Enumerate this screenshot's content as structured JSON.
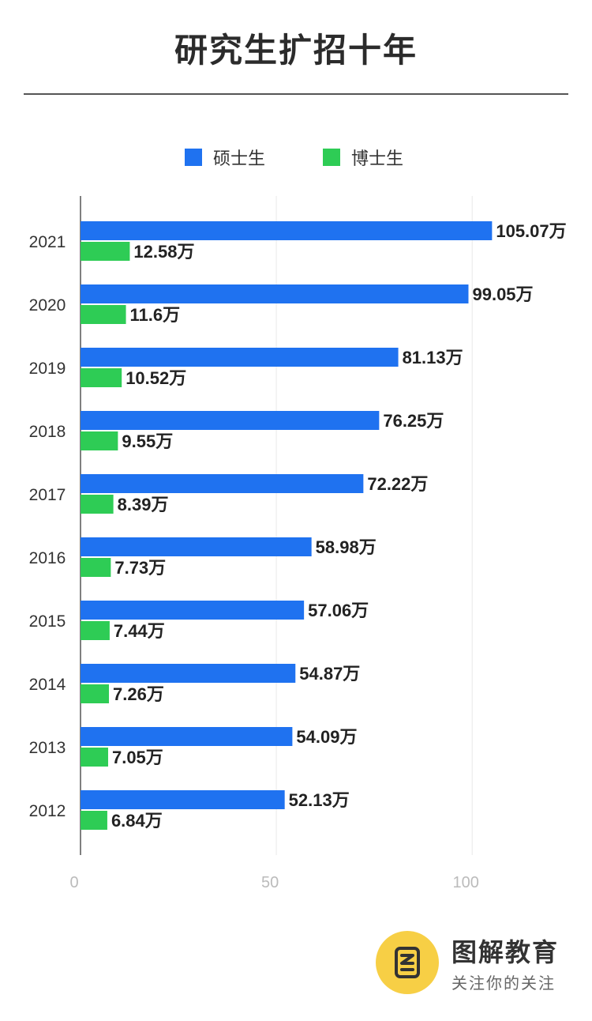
{
  "page": {
    "title": "研究生扩招十年"
  },
  "legend": {
    "masters": {
      "label": "硕士生",
      "color": "#1f72f0"
    },
    "doctoral": {
      "label": "博士生",
      "color": "#2ecc55"
    }
  },
  "chart_data": {
    "type": "bar",
    "orientation": "horizontal",
    "title": "研究生扩招十年",
    "unit_suffix": "万",
    "categories": [
      "2021",
      "2020",
      "2019",
      "2018",
      "2017",
      "2016",
      "2015",
      "2014",
      "2013",
      "2012"
    ],
    "series": [
      {
        "name": "硕士生",
        "color": "#1f72f0",
        "values": [
          105.07,
          99.05,
          81.13,
          76.25,
          72.22,
          58.98,
          57.06,
          54.87,
          54.09,
          52.13
        ]
      },
      {
        "name": "博士生",
        "color": "#2ecc55",
        "values": [
          12.58,
          11.6,
          10.52,
          9.55,
          8.39,
          7.73,
          7.44,
          7.26,
          7.05,
          6.84
        ]
      }
    ],
    "x_ticks": [
      0,
      50,
      100
    ],
    "xlim": [
      0,
      110
    ],
    "grid": true,
    "legend_position": "top"
  },
  "logo": {
    "name": "图解教育",
    "slogan": "关注你的关注"
  }
}
